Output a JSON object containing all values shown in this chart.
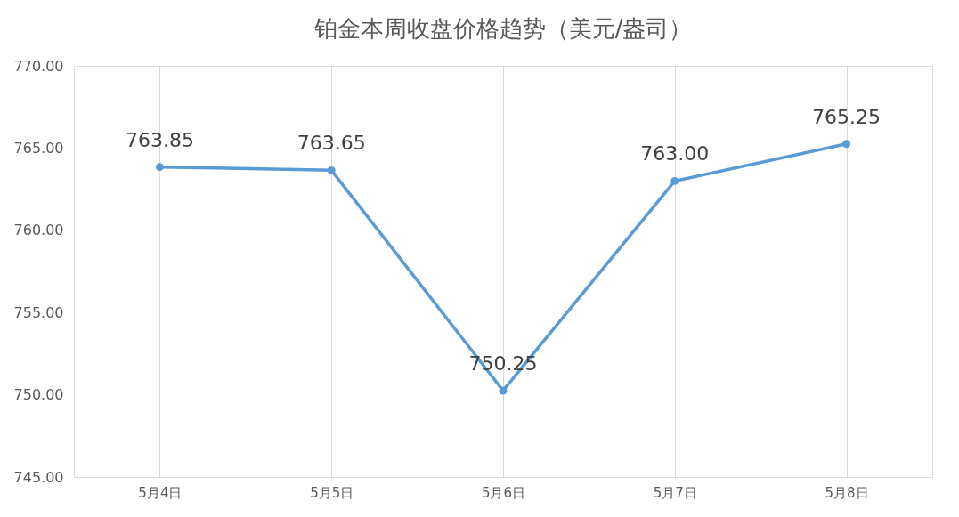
{
  "chart_data": {
    "type": "line",
    "title": "铂金本周收盘价格趋势（美元/盎司）",
    "categories": [
      "5月4日",
      "5月5日",
      "5月6日",
      "5月7日",
      "5月8日"
    ],
    "series": [
      {
        "color": "#5b9bd5",
        "values": [
          763.85,
          763.65,
          750.25,
          763.0,
          765.25
        ]
      }
    ],
    "ylim": [
      745,
      770
    ],
    "yticks": [
      {
        "value": 745,
        "label": "745.00"
      },
      {
        "value": 750,
        "label": "750.00"
      },
      {
        "value": 755,
        "label": "755.00"
      },
      {
        "value": 760,
        "label": "760.00"
      },
      {
        "value": 765,
        "label": "765.00"
      },
      {
        "value": 770,
        "label": "770.00"
      }
    ],
    "value_labels": [
      "763.85",
      "763.65",
      "750.25",
      "763.00",
      "765.25"
    ],
    "grid": "x",
    "marker": "circle",
    "line_style": "solid",
    "legend": false
  }
}
